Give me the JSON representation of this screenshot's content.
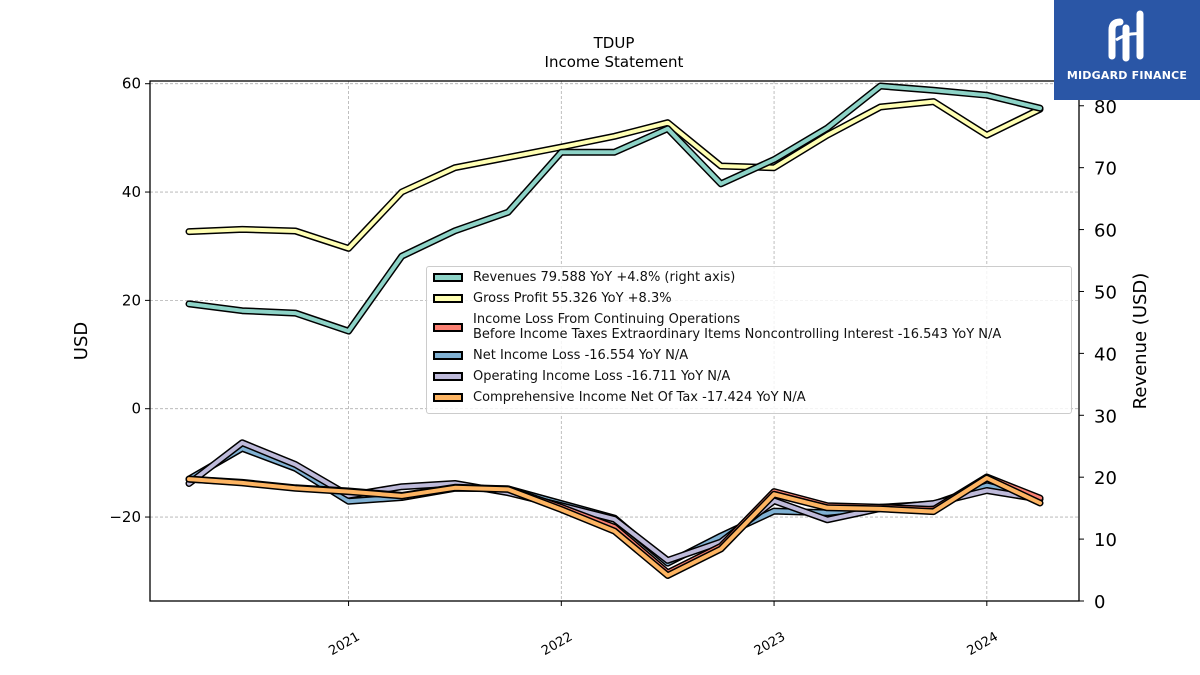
{
  "chart_data": {
    "type": "line",
    "title": "TDUP",
    "subtitle": "Income Statement",
    "ylabel_left": "USD",
    "ylabel_right": "Revenue (USD)",
    "xlabel": "",
    "ylim_left": [
      -35.5,
      60.5
    ],
    "ylim_right": [
      0,
      84
    ],
    "left_ticks": [
      "−20",
      "0",
      "20",
      "40",
      "60"
    ],
    "right_ticks": [
      "0",
      "10",
      "20",
      "30",
      "40",
      "50",
      "60",
      "70",
      "80"
    ],
    "x_ticks": [
      "2021",
      "2022",
      "2023",
      "2024"
    ],
    "grid": true,
    "legend_position": "center-right",
    "x": [
      "2020-04",
      "2020-07",
      "2020-10",
      "2021-01",
      "2021-04",
      "2021-07",
      "2021-10",
      "2022-01",
      "2022-04",
      "2022-07",
      "2022-10",
      "2023-01",
      "2023-04",
      "2023-07",
      "2023-10",
      "2024-01",
      "2024-04"
    ],
    "series": [
      {
        "key": "gross_profit",
        "name": "Gross Profit  55.326 YoY +8.3%",
        "axis": "left",
        "color": "#ffffb3",
        "values": [
          32.7,
          33.1,
          32.8,
          29.6,
          40.0,
          44.5,
          46.4,
          48.3,
          50.3,
          52.8,
          44.8,
          44.5,
          50.5,
          55.7,
          56.7,
          50.5,
          55.3
        ]
      },
      {
        "key": "net_income",
        "name": "Net Income Loss  -16.554 YoY N/A",
        "axis": "left",
        "color": "#80b1d3",
        "values": [
          -13.0,
          -7.3,
          -11.0,
          -17.1,
          -16.4,
          -14.7,
          -14.8,
          -17.5,
          -20.2,
          -28.5,
          -23.5,
          -18.9,
          -19.2,
          -18.2,
          -17.6,
          -14.2,
          -16.6
        ]
      },
      {
        "key": "operating_income",
        "name": "Operating Income Loss  -16.711 YoY N/A",
        "axis": "left",
        "color": "#bebada",
        "values": [
          -13.8,
          -6.3,
          -10.3,
          -16.0,
          -14.4,
          -13.8,
          -15.5,
          -17.9,
          -20.4,
          -28.0,
          -24.6,
          -17.0,
          -20.5,
          -18.4,
          -17.5,
          -15.1,
          -16.7
        ]
      },
      {
        "key": "pretax_income",
        "name": "Income Loss From Continuing Operations",
        "name_line2": "Before Income Taxes Extraordinary Items Noncontrolling Interest  -16.543 YoY N/A",
        "axis": "left",
        "color": "#fb8072",
        "values": [
          -13.0,
          -13.6,
          -14.6,
          -15.2,
          -16.0,
          -14.5,
          -14.8,
          -18.2,
          -21.9,
          -30.3,
          -25.4,
          -15.3,
          -17.9,
          -18.2,
          -18.6,
          -12.6,
          -16.5
        ]
      },
      {
        "key": "comprehensive_income",
        "name": "Comprehensive Income Net Of Tax  -17.424 YoY N/A",
        "axis": "left",
        "color": "#fdb462",
        "values": [
          -13.0,
          -13.7,
          -14.7,
          -15.3,
          -16.1,
          -14.6,
          -14.9,
          -18.6,
          -22.6,
          -30.8,
          -25.9,
          -15.8,
          -18.3,
          -18.5,
          -19.0,
          -12.8,
          -17.4
        ]
      },
      {
        "key": "revenues",
        "name": "Revenues  79.588 YoY +4.8% (right axis)",
        "axis": "right",
        "color": "#8dd3c7",
        "values": [
          48.0,
          46.9,
          46.5,
          43.6,
          55.7,
          59.8,
          62.8,
          72.5,
          72.5,
          76.3,
          67.4,
          71.3,
          76.4,
          83.2,
          82.5,
          81.7,
          79.6
        ]
      }
    ],
    "legend_order": [
      "revenues",
      "gross_profit",
      "pretax_income",
      "net_income",
      "operating_income",
      "comprehensive_income"
    ]
  },
  "logo": {
    "text": "MIDGARD FINANCE",
    "icon": "midgard-logo-icon"
  }
}
